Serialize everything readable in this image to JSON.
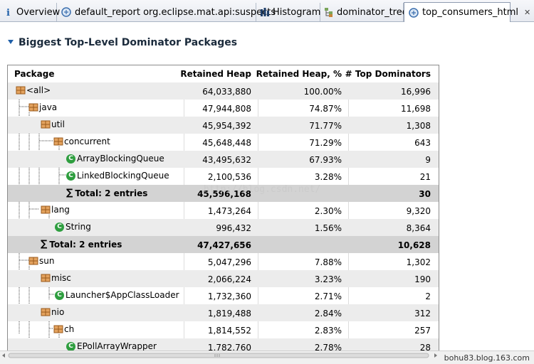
{
  "tabs": [
    {
      "label": "Overview",
      "icon": "info-icon"
    },
    {
      "label": "default_report  org.eclipse.mat.api:suspects",
      "icon": "report-icon"
    },
    {
      "label": "Histogram",
      "icon": "histogram-icon"
    },
    {
      "label": "dominator_tree",
      "icon": "dominator-tree-icon"
    },
    {
      "label": "top_consumers_html",
      "icon": "report-icon"
    }
  ],
  "section": {
    "title": "Biggest Top-Level Dominator Packages"
  },
  "table": {
    "headers": [
      "Package",
      "Retained Heap",
      "Retained Heap, %",
      "# Top Dominators"
    ],
    "rows": [
      {
        "name": "<all>",
        "heap": "64,033,880",
        "pct": "100.00%",
        "doms": "16,996"
      },
      {
        "name": "java",
        "heap": "47,944,808",
        "pct": "74.87%",
        "doms": "11,698"
      },
      {
        "name": "util",
        "heap": "45,954,392",
        "pct": "71.77%",
        "doms": "1,308"
      },
      {
        "name": "concurrent",
        "heap": "45,648,448",
        "pct": "71.29%",
        "doms": "643"
      },
      {
        "name": "ArrayBlockingQueue",
        "heap": "43,495,632",
        "pct": "67.93%",
        "doms": "9"
      },
      {
        "name": "LinkedBlockingQueue",
        "heap": "2,100,536",
        "pct": "3.28%",
        "doms": "21"
      },
      {
        "name": "Total: 2 entries",
        "heap": "45,596,168",
        "pct": "",
        "doms": "30"
      },
      {
        "name": "lang",
        "heap": "1,473,264",
        "pct": "2.30%",
        "doms": "9,320"
      },
      {
        "name": "String",
        "heap": "996,432",
        "pct": "1.56%",
        "doms": "8,364"
      },
      {
        "name": "Total: 2 entries",
        "heap": "47,427,656",
        "pct": "",
        "doms": "10,628"
      },
      {
        "name": "sun",
        "heap": "5,047,296",
        "pct": "7.88%",
        "doms": "1,302"
      },
      {
        "name": "misc",
        "heap": "2,066,224",
        "pct": "3.23%",
        "doms": "190"
      },
      {
        "name": "Launcher$AppClassLoader",
        "heap": "1,732,360",
        "pct": "2.71%",
        "doms": "2"
      },
      {
        "name": "nio",
        "heap": "1,819,488",
        "pct": "2.84%",
        "doms": "312"
      },
      {
        "name": "ch",
        "heap": "1,814,552",
        "pct": "2.83%",
        "doms": "257"
      },
      {
        "name": "EPollArrayWrapper",
        "heap": "1,782,760",
        "pct": "2.78%",
        "doms": "28"
      }
    ]
  },
  "watermark": "http://blog.csdn.net/",
  "footer": {
    "signature": "bohu83.blog.163.com"
  },
  "colors": {
    "accent": "#1f5fa8",
    "class_icon": "#2e9e3f",
    "package_icon": "#c8843a",
    "total_row": "#d3d3d3",
    "alt_row": "#ececec"
  }
}
